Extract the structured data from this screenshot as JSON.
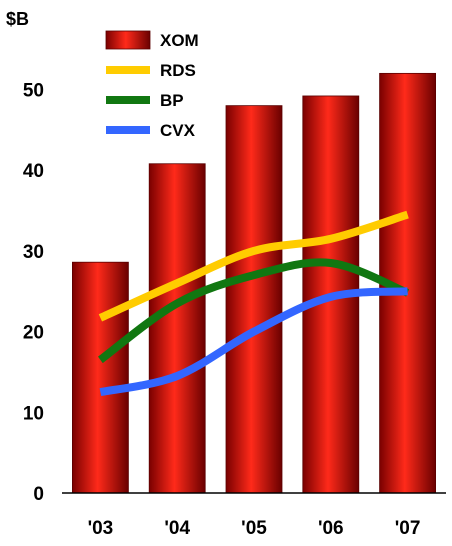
{
  "chart_data": {
    "type": "bar+line",
    "ylabel": "$B",
    "ylim": [
      0,
      55
    ],
    "yticks": [
      0,
      10,
      20,
      30,
      40,
      50
    ],
    "grid": false,
    "legend_position": "top-left",
    "categories": [
      "'03",
      "'04",
      "'05",
      "'06",
      "'07"
    ],
    "series": [
      {
        "name": "XOM",
        "kind": "bar",
        "color": "#c80000",
        "values": [
          28.6,
          40.8,
          48.0,
          49.2,
          52.0
        ]
      },
      {
        "name": "RDS",
        "kind": "line",
        "color": "#ffcc00",
        "values": [
          21.7,
          26.0,
          30.0,
          31.5,
          34.5
        ]
      },
      {
        "name": "BP",
        "kind": "line",
        "color": "#117711",
        "values": [
          16.5,
          23.5,
          27.0,
          28.5,
          24.8
        ]
      },
      {
        "name": "CVX",
        "kind": "line",
        "color": "#3366ff",
        "values": [
          12.5,
          14.5,
          20.0,
          24.3,
          25.0
        ]
      }
    ]
  }
}
